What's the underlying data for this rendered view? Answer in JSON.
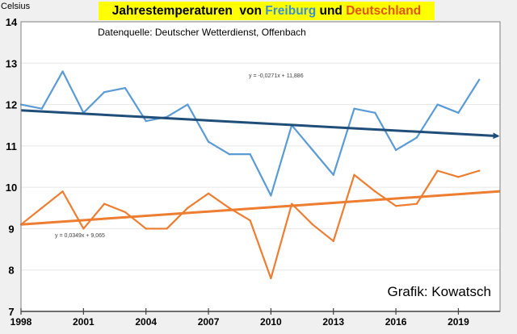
{
  "chart_data": {
    "type": "line",
    "title": {
      "part1": "Jahrestemperaturen  von ",
      "freiburg": "Freiburg",
      "part2": " und ",
      "deutschland": "Deutschland"
    },
    "subtitle": "Datenquelle: Deutscher Wetterdienst, Offenbach",
    "credit": "Grafik: Kowatsch",
    "xlabel": "",
    "ylabel": "Celsius",
    "xlim": [
      1998,
      2021
    ],
    "ylim": [
      7,
      14
    ],
    "x_ticks": [
      1998,
      2001,
      2004,
      2007,
      2010,
      2013,
      2016,
      2019
    ],
    "y_ticks": [
      7,
      8,
      9,
      10,
      11,
      12,
      13,
      14
    ],
    "grid": true,
    "x": [
      1998,
      1999,
      2000,
      2001,
      2002,
      2003,
      2004,
      2005,
      2006,
      2007,
      2008,
      2009,
      2010,
      2011,
      2012,
      2013,
      2014,
      2015,
      2016,
      2017,
      2018,
      2019,
      2020
    ],
    "series": [
      {
        "name": "Freiburg",
        "color": "#5b9bd5",
        "values": [
          12.0,
          11.9,
          12.8,
          11.8,
          12.3,
          12.4,
          11.6,
          11.7,
          12.0,
          11.1,
          10.8,
          10.8,
          9.8,
          11.5,
          10.9,
          10.3,
          11.9,
          11.8,
          10.9,
          11.2,
          12.0,
          11.8,
          12.6
        ]
      },
      {
        "name": "Deutschland",
        "color": "#ed7d31",
        "values": [
          9.1,
          9.5,
          9.9,
          9.0,
          9.6,
          9.4,
          9.0,
          9.0,
          9.5,
          9.85,
          9.5,
          9.2,
          7.8,
          9.6,
          9.1,
          8.7,
          10.3,
          9.9,
          9.55,
          9.6,
          10.4,
          10.25,
          10.4
        ]
      }
    ],
    "trendlines": [
      {
        "name": "Freiburg trend",
        "color": "#1f4e79",
        "equation": "y = -0,0271x + 11,886",
        "slope": -0.0271,
        "intercept": 11.886,
        "arrow": true
      },
      {
        "name": "Deutschland trend",
        "color": "#ed7d31",
        "equation": "y = 0,0349x + 9,065",
        "slope": 0.0349,
        "intercept": 9.065,
        "arrow": false
      }
    ]
  }
}
